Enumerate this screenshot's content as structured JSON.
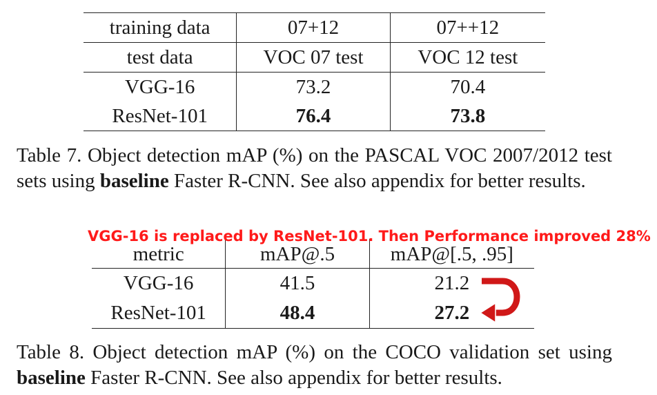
{
  "table7": {
    "header": [
      "training data",
      "07+12",
      "07++12"
    ],
    "rows": [
      [
        "test data",
        "VOC 07 test",
        "VOC 12 test"
      ],
      [
        "VGG-16",
        "73.2",
        "70.4"
      ],
      [
        "ResNet-101",
        "76.4",
        "73.8"
      ]
    ],
    "caption": {
      "part1": "Table 7. Object detection mAP (%) on the PASCAL VOC 2007/2012 test sets using ",
      "bold": "baseline",
      "part2": " Faster R-CNN. See also appendix for better results."
    }
  },
  "annotation": {
    "text": "VGG-16 is replaced by ResNet-101. Then Performance improved 28%",
    "color": "#ff1a1a"
  },
  "table8": {
    "header": [
      "metric",
      "mAP@.5",
      "mAP@[.5, .95]"
    ],
    "rows": [
      [
        "VGG-16",
        "41.5",
        "21.2"
      ],
      [
        "ResNet-101",
        "48.4",
        "27.2"
      ]
    ],
    "caption": {
      "part1": "Table 8. Object detection mAP (%) on the COCO validation set using ",
      "bold": "baseline",
      "part2": " Faster R-CNN. See also appendix for better results."
    }
  },
  "arrow_icon": "curved-arrow-icon"
}
